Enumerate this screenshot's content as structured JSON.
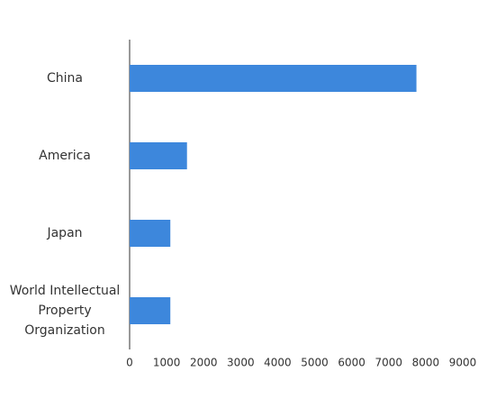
{
  "chart_data": {
    "type": "hbar",
    "categories": [
      "China",
      "America",
      "Japan",
      "World Intellectual Property Organization"
    ],
    "values": [
      7750,
      1550,
      1100,
      1100
    ],
    "color": "#3d87dc",
    "xlim": [
      0,
      9000
    ],
    "xticks": [
      0,
      1000,
      2000,
      3000,
      4000,
      5000,
      6000,
      7000,
      8000,
      9000
    ],
    "grid": false
  }
}
